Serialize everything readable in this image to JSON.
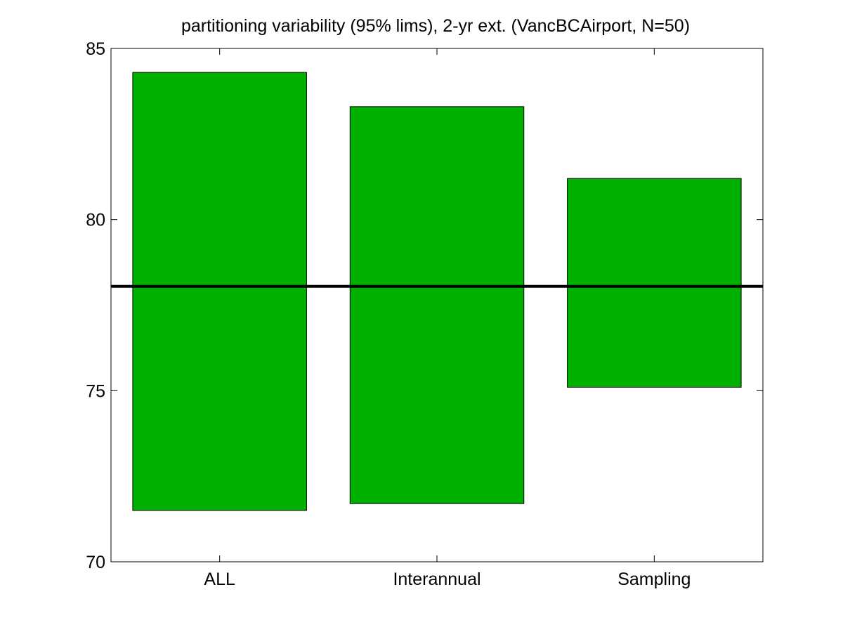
{
  "chart_data": {
    "type": "bar",
    "title": "partitioning variability (95% lims), 2-yr ext. (VancBCAirport, N=50)",
    "xlabel": "",
    "ylabel": "",
    "categories": [
      "ALL",
      "Interannual",
      "Sampling"
    ],
    "series": [
      {
        "ranges": [
          [
            71.5,
            84.3
          ],
          [
            71.7,
            83.3
          ],
          [
            75.1,
            81.2
          ]
        ]
      }
    ],
    "reference_line": 78.05,
    "ylim": [
      70,
      85
    ],
    "yticks": [
      70,
      75,
      80,
      85
    ],
    "grid": false,
    "colors": {
      "bar": "#00b000",
      "line": "#000000",
      "axis": "#000000",
      "background": "#ffffff"
    }
  }
}
